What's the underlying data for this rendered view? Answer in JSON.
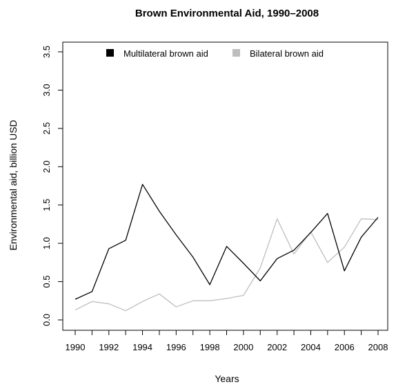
{
  "chart_data": {
    "type": "line",
    "title": "Brown Environmental Aid, 1990–2008",
    "xlabel": "Years",
    "ylabel": "Environmental aid, billion USD",
    "x": [
      1990,
      1991,
      1992,
      1993,
      1994,
      1995,
      1996,
      1997,
      1998,
      1999,
      2000,
      2001,
      2002,
      2003,
      2004,
      2005,
      2006,
      2007,
      2008
    ],
    "xticks": [
      "1990",
      "1992",
      "1994",
      "1996",
      "1998",
      "2000",
      "2002",
      "2004",
      "2006",
      "2008"
    ],
    "yticks": [
      "0.0",
      "0.5",
      "1.0",
      "1.5",
      "2.0",
      "2.5",
      "3.0",
      "3.5"
    ],
    "xlim": [
      1990,
      2008
    ],
    "ylim": [
      0,
      3.5
    ],
    "grid": false,
    "legend_position": "top",
    "series": [
      {
        "name": "Multilateral brown aid",
        "color": "#000000",
        "values": [
          0.27,
          0.37,
          0.93,
          1.04,
          1.77,
          1.42,
          1.11,
          0.82,
          0.46,
          0.96,
          0.74,
          0.51,
          0.8,
          0.91,
          1.14,
          1.39,
          0.64,
          1.08,
          1.34
        ]
      },
      {
        "name": "Bilateral brown aid",
        "color": "#bebebe",
        "values": [
          0.13,
          0.24,
          0.21,
          0.12,
          0.24,
          0.34,
          0.17,
          0.25,
          0.25,
          0.28,
          0.32,
          0.68,
          1.32,
          0.86,
          1.15,
          0.75,
          0.95,
          1.32,
          1.31
        ]
      }
    ]
  }
}
